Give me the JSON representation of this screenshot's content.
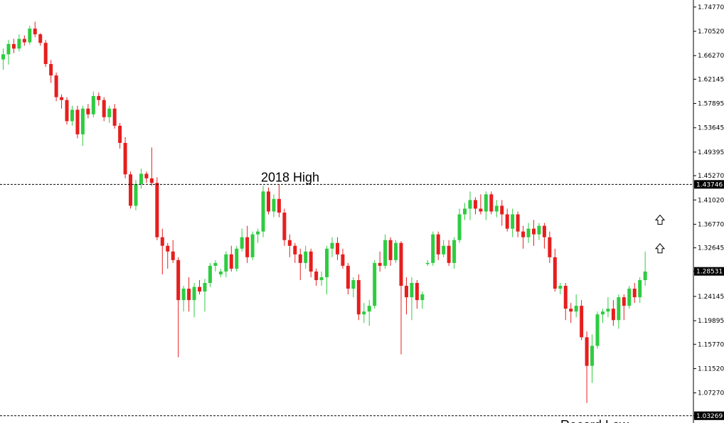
{
  "chart_data": {
    "type": "candlestick",
    "y_axis": {
      "ticks": [
        "1.74770",
        "1.70520",
        "1.66270",
        "1.62145",
        "1.57895",
        "1.53645",
        "1.49395",
        "1.45270",
        "1.41020",
        "1.36770",
        "1.32645",
        "1.28531",
        "1.24145",
        "1.19895",
        "1.15770",
        "1.11520",
        "1.07270",
        "1.03269"
      ],
      "range": [
        1.02,
        1.76
      ],
      "position": "right"
    },
    "horizontal_levels": [
      {
        "value": 1.43746,
        "label": "2018 High",
        "badge": "1.43746",
        "style": "dashed"
      },
      {
        "value": 1.03269,
        "label": "Record Low",
        "badge": "1.03269",
        "style": "dashed"
      }
    ],
    "current_price": {
      "value": 1.28531,
      "badge": "1.28531"
    },
    "markers": [
      {
        "type": "arrow-up",
        "price": 1.375
      },
      {
        "type": "arrow-up",
        "price": 1.325
      }
    ],
    "colors": {
      "bull": "#2ecc40",
      "bear": "#e61e1e",
      "badge": "#000000",
      "grid": "#000000"
    },
    "grid": false,
    "candles": [
      [
        1.656,
        1.675,
        1.638,
        1.665
      ],
      [
        1.665,
        1.69,
        1.647,
        1.683
      ],
      [
        1.683,
        1.692,
        1.667,
        1.675
      ],
      [
        1.675,
        1.7,
        1.67,
        1.692
      ],
      [
        1.692,
        1.698,
        1.68,
        1.686
      ],
      [
        1.686,
        1.715,
        1.682,
        1.71
      ],
      [
        1.71,
        1.722,
        1.695,
        1.7
      ],
      [
        1.7,
        1.702,
        1.68,
        1.685
      ],
      [
        1.685,
        1.69,
        1.643,
        1.648
      ],
      [
        1.648,
        1.655,
        1.615,
        1.628
      ],
      [
        1.628,
        1.633,
        1.583,
        1.59
      ],
      [
        1.59,
        1.595,
        1.57,
        1.585
      ],
      [
        1.585,
        1.59,
        1.542,
        1.548
      ],
      [
        1.548,
        1.575,
        1.54,
        1.568
      ],
      [
        1.568,
        1.575,
        1.518,
        1.525
      ],
      [
        1.525,
        1.575,
        1.505,
        1.57
      ],
      [
        1.57,
        1.578,
        1.553,
        1.56
      ],
      [
        1.56,
        1.6,
        1.555,
        1.592
      ],
      [
        1.592,
        1.598,
        1.575,
        1.585
      ],
      [
        1.585,
        1.59,
        1.548,
        1.555
      ],
      [
        1.555,
        1.575,
        1.545,
        1.57
      ],
      [
        1.57,
        1.578,
        1.535,
        1.54
      ],
      [
        1.54,
        1.545,
        1.5,
        1.51
      ],
      [
        1.51,
        1.52,
        1.448,
        1.455
      ],
      [
        1.455,
        1.46,
        1.395,
        1.4
      ],
      [
        1.4,
        1.445,
        1.392,
        1.438
      ],
      [
        1.438,
        1.465,
        1.43,
        1.456
      ],
      [
        1.456,
        1.46,
        1.44,
        1.448
      ],
      [
        1.448,
        1.502,
        1.435,
        1.44
      ],
      [
        1.44,
        1.45,
        1.34,
        1.345
      ],
      [
        1.345,
        1.36,
        1.28,
        1.33
      ],
      [
        1.33,
        1.335,
        1.29,
        1.32
      ],
      [
        1.32,
        1.34,
        1.3,
        1.305
      ],
      [
        1.305,
        1.31,
        1.135,
        1.235
      ],
      [
        1.235,
        1.26,
        1.215,
        1.255
      ],
      [
        1.255,
        1.275,
        1.215,
        1.235
      ],
      [
        1.235,
        1.265,
        1.205,
        1.258
      ],
      [
        1.258,
        1.27,
        1.245,
        1.25
      ],
      [
        1.25,
        1.272,
        1.215,
        1.265
      ],
      [
        1.265,
        1.3,
        1.258,
        1.295
      ],
      [
        1.295,
        1.305,
        1.285,
        1.3
      ],
      [
        1.28,
        1.29,
        1.275,
        1.285
      ],
      [
        1.285,
        1.32,
        1.275,
        1.315
      ],
      [
        1.315,
        1.33,
        1.285,
        1.29
      ],
      [
        1.29,
        1.33,
        1.285,
        1.325
      ],
      [
        1.325,
        1.36,
        1.32,
        1.345
      ],
      [
        1.345,
        1.365,
        1.3,
        1.31
      ],
      [
        1.31,
        1.355,
        1.305,
        1.35
      ],
      [
        1.35,
        1.36,
        1.335,
        1.355
      ],
      [
        1.355,
        1.435,
        1.345,
        1.425
      ],
      [
        1.425,
        1.432,
        1.385,
        1.39
      ],
      [
        1.39,
        1.42,
        1.38,
        1.412
      ],
      [
        1.412,
        1.438,
        1.38,
        1.388
      ],
      [
        1.388,
        1.395,
        1.33,
        1.34
      ],
      [
        1.34,
        1.35,
        1.31,
        1.33
      ],
      [
        1.33,
        1.335,
        1.3,
        1.315
      ],
      [
        1.315,
        1.325,
        1.27,
        1.3
      ],
      [
        1.3,
        1.33,
        1.29,
        1.32
      ],
      [
        1.32,
        1.325,
        1.275,
        1.285
      ],
      [
        1.285,
        1.29,
        1.26,
        1.27
      ],
      [
        1.27,
        1.285,
        1.26,
        1.275
      ],
      [
        1.275,
        1.33,
        1.245,
        1.325
      ],
      [
        1.325,
        1.345,
        1.31,
        1.335
      ],
      [
        1.335,
        1.345,
        1.305,
        1.315
      ],
      [
        1.315,
        1.325,
        1.29,
        1.295
      ],
      [
        1.295,
        1.3,
        1.245,
        1.255
      ],
      [
        1.255,
        1.275,
        1.24,
        1.27
      ],
      [
        1.27,
        1.28,
        1.2,
        1.21
      ],
      [
        1.21,
        1.23,
        1.195,
        1.215
      ],
      [
        1.215,
        1.235,
        1.19,
        1.225
      ],
      [
        1.225,
        1.305,
        1.22,
        1.3
      ],
      [
        1.3,
        1.32,
        1.285,
        1.295
      ],
      [
        1.295,
        1.35,
        1.29,
        1.34
      ],
      [
        1.34,
        1.345,
        1.295,
        1.305
      ],
      [
        1.305,
        1.34,
        1.3,
        1.335
      ],
      [
        1.335,
        1.338,
        1.14,
        1.26
      ],
      [
        1.26,
        1.275,
        1.21,
        1.24
      ],
      [
        1.24,
        1.275,
        1.2,
        1.265
      ],
      [
        1.265,
        1.27,
        1.22,
        1.235
      ],
      [
        1.235,
        1.25,
        1.22,
        1.245
      ],
      [
        1.3,
        1.305,
        1.295,
        1.3
      ],
      [
        1.3,
        1.355,
        1.295,
        1.35
      ],
      [
        1.35,
        1.355,
        1.305,
        1.315
      ],
      [
        1.315,
        1.34,
        1.31,
        1.33
      ],
      [
        1.33,
        1.34,
        1.295,
        1.3
      ],
      [
        1.3,
        1.345,
        1.29,
        1.34
      ],
      [
        1.34,
        1.395,
        1.335,
        1.385
      ],
      [
        1.385,
        1.405,
        1.375,
        1.395
      ],
      [
        1.395,
        1.425,
        1.375,
        1.41
      ],
      [
        1.41,
        1.415,
        1.385,
        1.395
      ],
      [
        1.395,
        1.42,
        1.385,
        1.39
      ],
      [
        1.39,
        1.425,
        1.375,
        1.42
      ],
      [
        1.42,
        1.425,
        1.385,
        1.39
      ],
      [
        1.39,
        1.41,
        1.38,
        1.4
      ],
      [
        1.4,
        1.41,
        1.365,
        1.385
      ],
      [
        1.385,
        1.395,
        1.355,
        1.36
      ],
      [
        1.36,
        1.395,
        1.345,
        1.385
      ],
      [
        1.385,
        1.39,
        1.345,
        1.355
      ],
      [
        1.355,
        1.365,
        1.325,
        1.345
      ],
      [
        1.345,
        1.37,
        1.335,
        1.36
      ],
      [
        1.36,
        1.375,
        1.33,
        1.35
      ],
      [
        1.35,
        1.37,
        1.34,
        1.365
      ],
      [
        1.365,
        1.37,
        1.325,
        1.345
      ],
      [
        1.345,
        1.355,
        1.3,
        1.31
      ],
      [
        1.31,
        1.325,
        1.25,
        1.255
      ],
      [
        1.255,
        1.265,
        1.245,
        1.26
      ],
      [
        1.26,
        1.265,
        1.2,
        1.22
      ],
      [
        1.22,
        1.23,
        1.195,
        1.215
      ],
      [
        1.215,
        1.245,
        1.205,
        1.225
      ],
      [
        1.225,
        1.235,
        1.165,
        1.17
      ],
      [
        1.17,
        1.18,
        1.055,
        1.12
      ],
      [
        1.12,
        1.175,
        1.09,
        1.155
      ],
      [
        1.155,
        1.215,
        1.15,
        1.21
      ],
      [
        1.21,
        1.22,
        1.195,
        1.215
      ],
      [
        1.215,
        1.24,
        1.205,
        1.22
      ],
      [
        1.22,
        1.235,
        1.19,
        1.2
      ],
      [
        1.2,
        1.245,
        1.185,
        1.24
      ],
      [
        1.24,
        1.245,
        1.2,
        1.225
      ],
      [
        1.225,
        1.26,
        1.22,
        1.255
      ],
      [
        1.255,
        1.265,
        1.23,
        1.24
      ],
      [
        1.24,
        1.275,
        1.23,
        1.27
      ],
      [
        1.27,
        1.32,
        1.26,
        1.285
      ]
    ]
  }
}
